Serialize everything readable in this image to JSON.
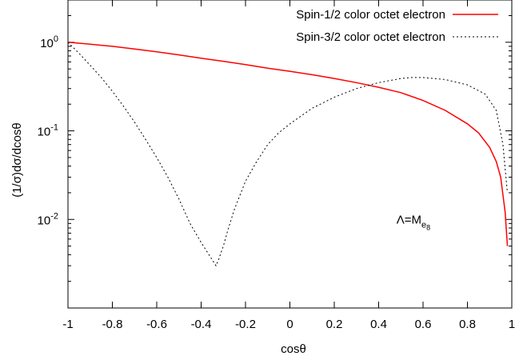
{
  "chart_data": {
    "type": "line",
    "xlabel": "cosθ",
    "ylabel": "(1/σ)dσ/dcosθ",
    "xlim": [
      -1,
      1
    ],
    "ylim": [
      0.001,
      3
    ],
    "yscale": "log",
    "grid": false,
    "legend_position": "top-right",
    "x_ticks": [
      -1,
      -0.8,
      -0.6,
      -0.4,
      -0.2,
      0,
      0.2,
      0.4,
      0.6,
      0.8,
      1
    ],
    "x_tick_labels": [
      "-1",
      "-0.8",
      "-0.6",
      "-0.4",
      "-0.2",
      "0",
      "0.2",
      "0.4",
      "0.6",
      "0.8",
      "1"
    ],
    "y_ticks": [
      {
        "base": "10",
        "exp": "0",
        "value": 1
      },
      {
        "base": "10",
        "exp": "-1",
        "value": 0.1
      },
      {
        "base": "10",
        "exp": "-2",
        "value": 0.01
      }
    ],
    "annotation": {
      "prefix": "Λ=M",
      "sub1": "e",
      "sub2": "8",
      "x": 0.48,
      "y": 0.009
    },
    "series": [
      {
        "name": "Spin-1/2 color octet electron",
        "color": "#ff0000",
        "style": "solid",
        "x": [
          -1,
          -0.9,
          -0.8,
          -0.7,
          -0.6,
          -0.5,
          -0.4,
          -0.3,
          -0.2,
          -0.1,
          0,
          0.1,
          0.2,
          0.3,
          0.4,
          0.5,
          0.6,
          0.7,
          0.8,
          0.85,
          0.9,
          0.93,
          0.95,
          0.97,
          0.98
        ],
        "y": [
          1.0,
          0.95,
          0.9,
          0.84,
          0.78,
          0.72,
          0.66,
          0.61,
          0.56,
          0.51,
          0.47,
          0.43,
          0.39,
          0.35,
          0.31,
          0.27,
          0.22,
          0.17,
          0.12,
          0.095,
          0.065,
          0.045,
          0.03,
          0.012,
          0.005
        ]
      },
      {
        "name": "Spin-3/2 color octet electron",
        "color": "#000000",
        "style": "dotted",
        "x": [
          -1,
          -0.95,
          -0.9,
          -0.85,
          -0.8,
          -0.75,
          -0.7,
          -0.65,
          -0.6,
          -0.55,
          -0.5,
          -0.45,
          -0.4,
          -0.37,
          -0.35,
          -0.333,
          -0.32,
          -0.3,
          -0.28,
          -0.25,
          -0.2,
          -0.15,
          -0.1,
          -0.05,
          0,
          0.1,
          0.2,
          0.3,
          0.4,
          0.5,
          0.55,
          0.6,
          0.7,
          0.8,
          0.88,
          0.93,
          0.96,
          0.98
        ],
        "y": [
          1.0,
          0.75,
          0.55,
          0.4,
          0.28,
          0.19,
          0.125,
          0.08,
          0.05,
          0.03,
          0.017,
          0.009,
          0.0055,
          0.0042,
          0.0035,
          0.003,
          0.0036,
          0.005,
          0.0075,
          0.013,
          0.027,
          0.045,
          0.07,
          0.095,
          0.12,
          0.18,
          0.24,
          0.3,
          0.35,
          0.39,
          0.4,
          0.4,
          0.38,
          0.33,
          0.26,
          0.17,
          0.07,
          0.02
        ]
      }
    ]
  }
}
